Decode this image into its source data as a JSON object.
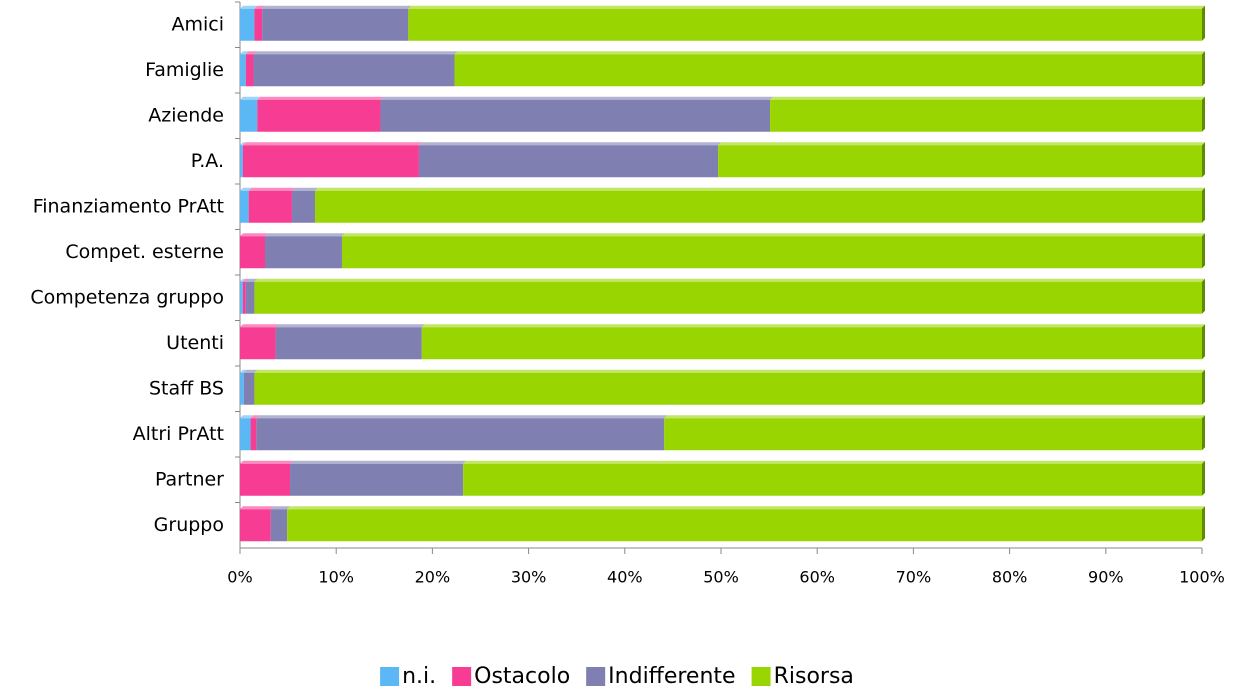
{
  "chart_data": {
    "type": "stacked_barh",
    "categories": [
      "Amici",
      "Famiglie",
      "Aziende",
      "P.A.",
      "Finanziamento PrAtt",
      "Compet. esterne",
      "Competenza gruppo",
      "Utenti",
      "Staff BS",
      "Altri PrAtt",
      "Partner",
      "Gruppo"
    ],
    "series": [
      {
        "name": "n.i.",
        "color": "#5bb8f5",
        "values": [
          1.5,
          0.6,
          1.8,
          0.3,
          0.9,
          0,
          0.3,
          0,
          0.4,
          1.1,
          0,
          0
        ]
      },
      {
        "name": "Ostacolo",
        "color": "#f73c94",
        "values": [
          0.8,
          0.8,
          12.8,
          18.3,
          4.5,
          2.6,
          0.3,
          3.7,
          0,
          0.6,
          5.2,
          3.2
        ]
      },
      {
        "name": "Indifferente",
        "color": "#7f7fb2",
        "values": [
          15.2,
          20.9,
          40.5,
          31.1,
          2.4,
          8.0,
          0.9,
          15.2,
          1.1,
          42.4,
          18.0,
          1.7
        ]
      },
      {
        "name": "Risorsa",
        "color": "#99d500",
        "values": [
          82.5,
          77.7,
          44.9,
          50.3,
          92.2,
          89.4,
          98.5,
          81.1,
          98.5,
          55.9,
          76.8,
          95.1
        ]
      }
    ],
    "xlim": [
      0,
      100
    ],
    "xticks": [
      {
        "value": 0,
        "label": "0%"
      },
      {
        "value": 10,
        "label": "10%"
      },
      {
        "value": 20,
        "label": "20%"
      },
      {
        "value": 30,
        "label": "30%"
      },
      {
        "value": 40,
        "label": "40%"
      },
      {
        "value": 50,
        "label": "50%"
      },
      {
        "value": 60,
        "label": "60%"
      },
      {
        "value": 70,
        "label": "70%"
      },
      {
        "value": 80,
        "label": "80%"
      },
      {
        "value": 90,
        "label": "90%"
      },
      {
        "value": 100,
        "label": "100%"
      }
    ],
    "legend": "bottom"
  }
}
